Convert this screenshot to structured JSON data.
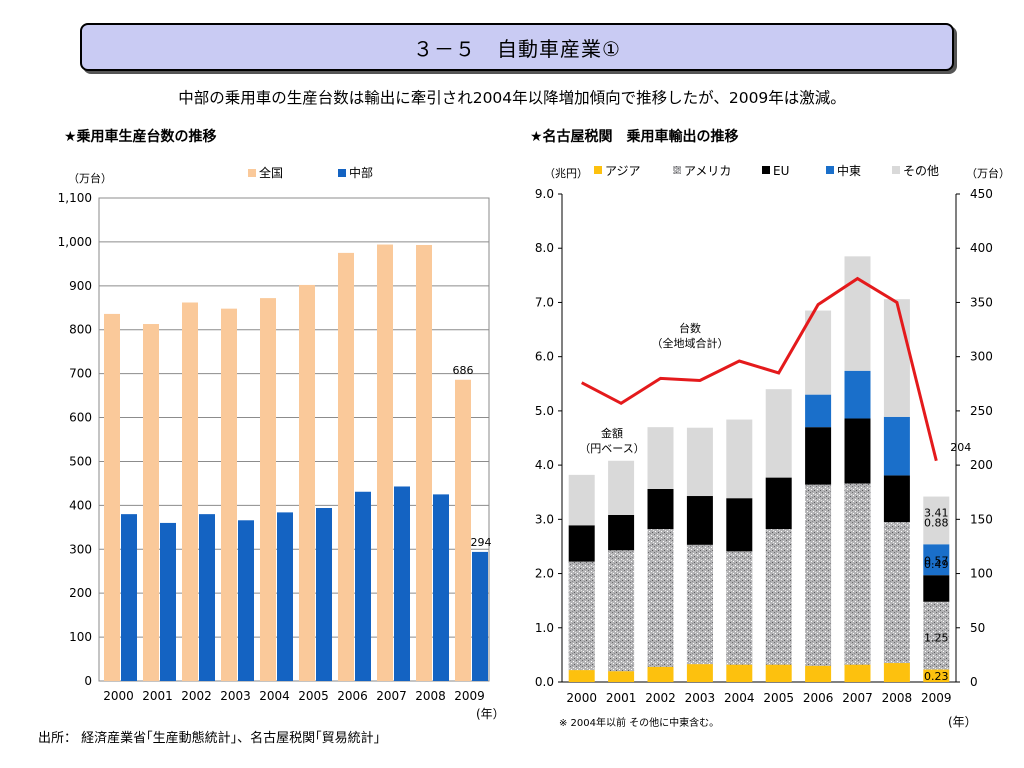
{
  "page": {
    "title": "３－５　自動車産業①",
    "subtitle": "中部の乗用車の生産台数は輸出に牽引され2004年以降増加傾向で推移したが、2009年は激減。",
    "source": "出所：  経済産業省｢生産動態統計｣、名古屋税関｢貿易統計｣"
  },
  "chart_data": [
    {
      "type": "bar",
      "title": "★乗用車生産台数の推移",
      "ylabel": "（万台）",
      "xlabel": "(年）",
      "categories": [
        "2000",
        "2001",
        "2002",
        "2003",
        "2004",
        "2005",
        "2006",
        "2007",
        "2008",
        "2009"
      ],
      "series": [
        {
          "name": "全国",
          "color": "#fac99a",
          "values": [
            836,
            813,
            862,
            848,
            872,
            902,
            975,
            994,
            993,
            686
          ]
        },
        {
          "name": "中部",
          "color": "#1463c2",
          "values": [
            380,
            360,
            380,
            366,
            384,
            394,
            431,
            443,
            425,
            294
          ]
        }
      ],
      "ylim": [
        0,
        1100
      ],
      "yticks": [
        "0",
        "100",
        "200",
        "300",
        "400",
        "500",
        "600",
        "700",
        "800",
        "900",
        "1,000",
        "1,100"
      ],
      "annotations": [
        {
          "category": "2009",
          "series": "全国",
          "text": "686"
        },
        {
          "category": "2009",
          "series": "中部",
          "text": "294"
        }
      ],
      "grid": true,
      "legend": "top"
    },
    {
      "type": "bar",
      "subtype": "stacked bar with line",
      "title": "★名古屋税関　乗用車輸出の推移",
      "ylabel_left": "（兆円）",
      "ylabel_right": "（万台）",
      "xlabel": "(年）",
      "categories": [
        "2000",
        "2001",
        "2002",
        "2003",
        "2004",
        "2005",
        "2006",
        "2007",
        "2008",
        "2009"
      ],
      "series": [
        {
          "name": "アジア",
          "color": "#fdc10e",
          "values": [
            0.22,
            0.2,
            0.28,
            0.33,
            0.32,
            0.32,
            0.3,
            0.32,
            0.35,
            0.23
          ]
        },
        {
          "name": "アメリカ",
          "color": "#a9a9ab",
          "pattern": "speckle",
          "values": [
            2.0,
            2.23,
            2.54,
            2.2,
            2.09,
            2.5,
            3.34,
            3.34,
            2.6,
            1.25
          ]
        },
        {
          "name": "EU",
          "color": "#000000",
          "values": [
            0.67,
            0.65,
            0.74,
            0.9,
            0.98,
            0.95,
            1.06,
            1.2,
            0.86,
            0.49
          ]
        },
        {
          "name": "中東",
          "color": "#1a6fca",
          "values": [
            0,
            0,
            0,
            0,
            0,
            0,
            0.6,
            0.88,
            1.08,
            0.57
          ]
        },
        {
          "name": "その他",
          "color": "#d9d9d9",
          "values": [
            0.93,
            1.0,
            1.14,
            1.26,
            1.45,
            1.63,
            1.55,
            2.11,
            2.17,
            0.88
          ]
        }
      ],
      "line": {
        "name": "台数（全地域合計）",
        "axis": "right",
        "color": "#e41a1c",
        "values": [
          276,
          257,
          280,
          278,
          296,
          285,
          348,
          372,
          350,
          204
        ]
      },
      "ylim_left": [
        0,
        9.0
      ],
      "ylim_right": [
        0,
        450
      ],
      "yticks_left": [
        "0.0",
        "1.0",
        "2.0",
        "3.0",
        "4.0",
        "5.0",
        "6.0",
        "7.0",
        "8.0",
        "9.0"
      ],
      "yticks_right": [
        "0",
        "50",
        "100",
        "150",
        "200",
        "250",
        "300",
        "350",
        "400",
        "450"
      ],
      "labels_2009": [
        "3.41",
        "0.88",
        "0.57",
        "0.49",
        "1.25",
        "0.23"
      ],
      "annotations": [
        {
          "text_lines": [
            "金額",
            "（円ベース）"
          ]
        },
        {
          "text_lines": [
            "台数",
            "（全地域合計）"
          ]
        },
        {
          "text": "204"
        }
      ],
      "footnote": "※  2004年以前  その他に中東含む。",
      "legend": "top"
    }
  ]
}
